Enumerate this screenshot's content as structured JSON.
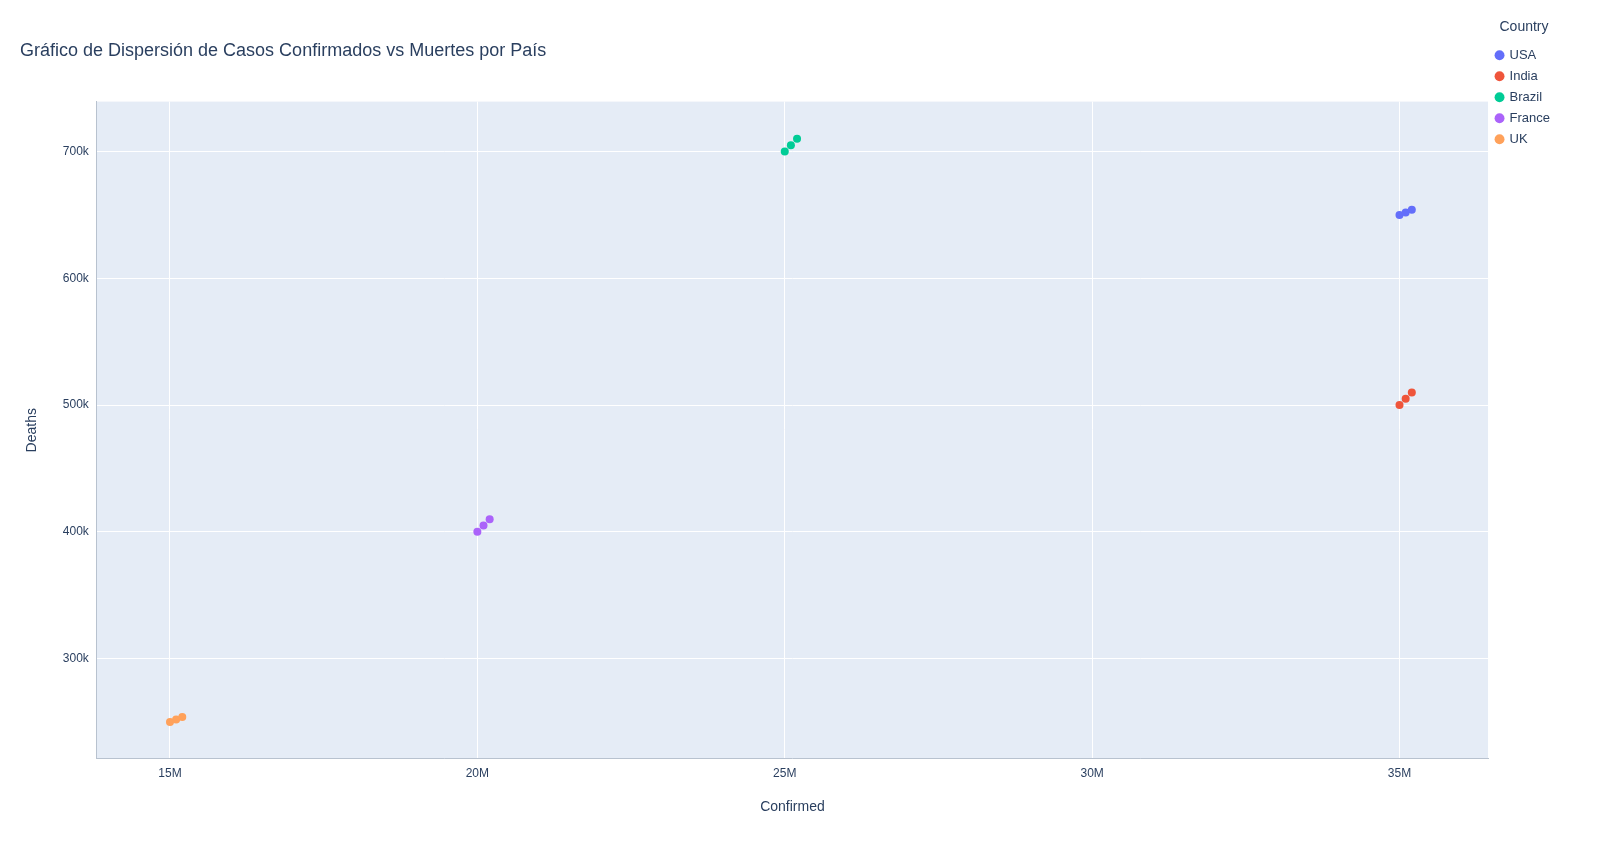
{
  "chart_data": {
    "type": "scatter",
    "title": "Gráfico de Dispersión de Casos Confirmados vs Muertes por País",
    "x_label": "Confirmed",
    "y_label": "Deaths",
    "legend_title": "Country",
    "legend": "right",
    "grid": true,
    "marker": "circle",
    "xlim": [
      13810000,
      36440000
    ],
    "xticks": [
      {
        "value": 15000000,
        "label": "15M"
      },
      {
        "value": 20000000,
        "label": "20M"
      },
      {
        "value": 25000000,
        "label": "25M"
      },
      {
        "value": 30000000,
        "label": "30M"
      },
      {
        "value": 35000000,
        "label": "35M"
      }
    ],
    "ylim": [
      221000,
      739400
    ],
    "yticks": [
      {
        "value": 300000,
        "label": "300k"
      },
      {
        "value": 400000,
        "label": "400k"
      },
      {
        "value": 500000,
        "label": "500k"
      },
      {
        "value": 600000,
        "label": "600k"
      },
      {
        "value": 700000,
        "label": "700k"
      }
    ],
    "series": [
      {
        "name": "USA",
        "color": "#636efa",
        "x": [
          35000000,
          35100000,
          35200000
        ],
        "values": [
          650000,
          652000,
          654000
        ]
      },
      {
        "name": "India",
        "color": "#ef553b",
        "x": [
          35000000,
          35100000,
          35200000
        ],
        "values": [
          500000,
          505000,
          510000
        ]
      },
      {
        "name": "Brazil",
        "color": "#00cc96",
        "x": [
          25000000,
          25100000,
          25200000
        ],
        "values": [
          700000,
          705000,
          710000
        ]
      },
      {
        "name": "France",
        "color": "#ab63fa",
        "x": [
          20000000,
          20100000,
          20200000
        ],
        "values": [
          400000,
          405000,
          410000
        ]
      },
      {
        "name": "UK",
        "color": "#ffa15a",
        "x": [
          15000000,
          15100000,
          15200000
        ],
        "values": [
          250000,
          252000,
          254000
        ]
      }
    ]
  }
}
